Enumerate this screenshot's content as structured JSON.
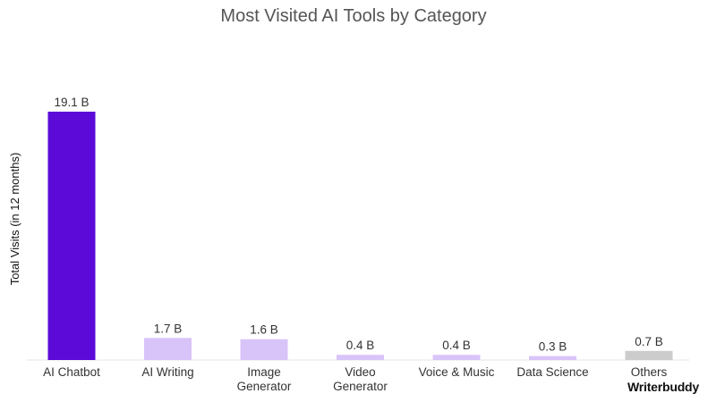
{
  "chart_data": {
    "type": "bar",
    "title": "Most Visited AI Tools by Category",
    "xlabel": "",
    "ylabel": "Total Visits (in 12 months)",
    "ylim": [
      0,
      19.1
    ],
    "grid": false,
    "categories": [
      [
        "AI Chatbot"
      ],
      [
        "AI Writing"
      ],
      [
        "Image",
        "Generator"
      ],
      [
        "Video",
        "Generator"
      ],
      [
        "Voice & Music"
      ],
      [
        "Data Science"
      ],
      [
        "Others"
      ]
    ],
    "values": [
      19.1,
      1.7,
      1.6,
      0.4,
      0.4,
      0.3,
      0.7
    ],
    "data_labels": [
      "19.1 B",
      "1.7 B",
      "1.6 B",
      "0.4 B",
      "0.4 B",
      "0.3 B",
      "0.7 B"
    ],
    "colors": [
      "#5b0ad8",
      "#d9c4f9",
      "#d9c4f9",
      "#d9c4f9",
      "#d9c4f9",
      "#d9c4f9",
      "#cccccc"
    ]
  },
  "branding": {
    "logo_text": "Writerbuddy"
  }
}
